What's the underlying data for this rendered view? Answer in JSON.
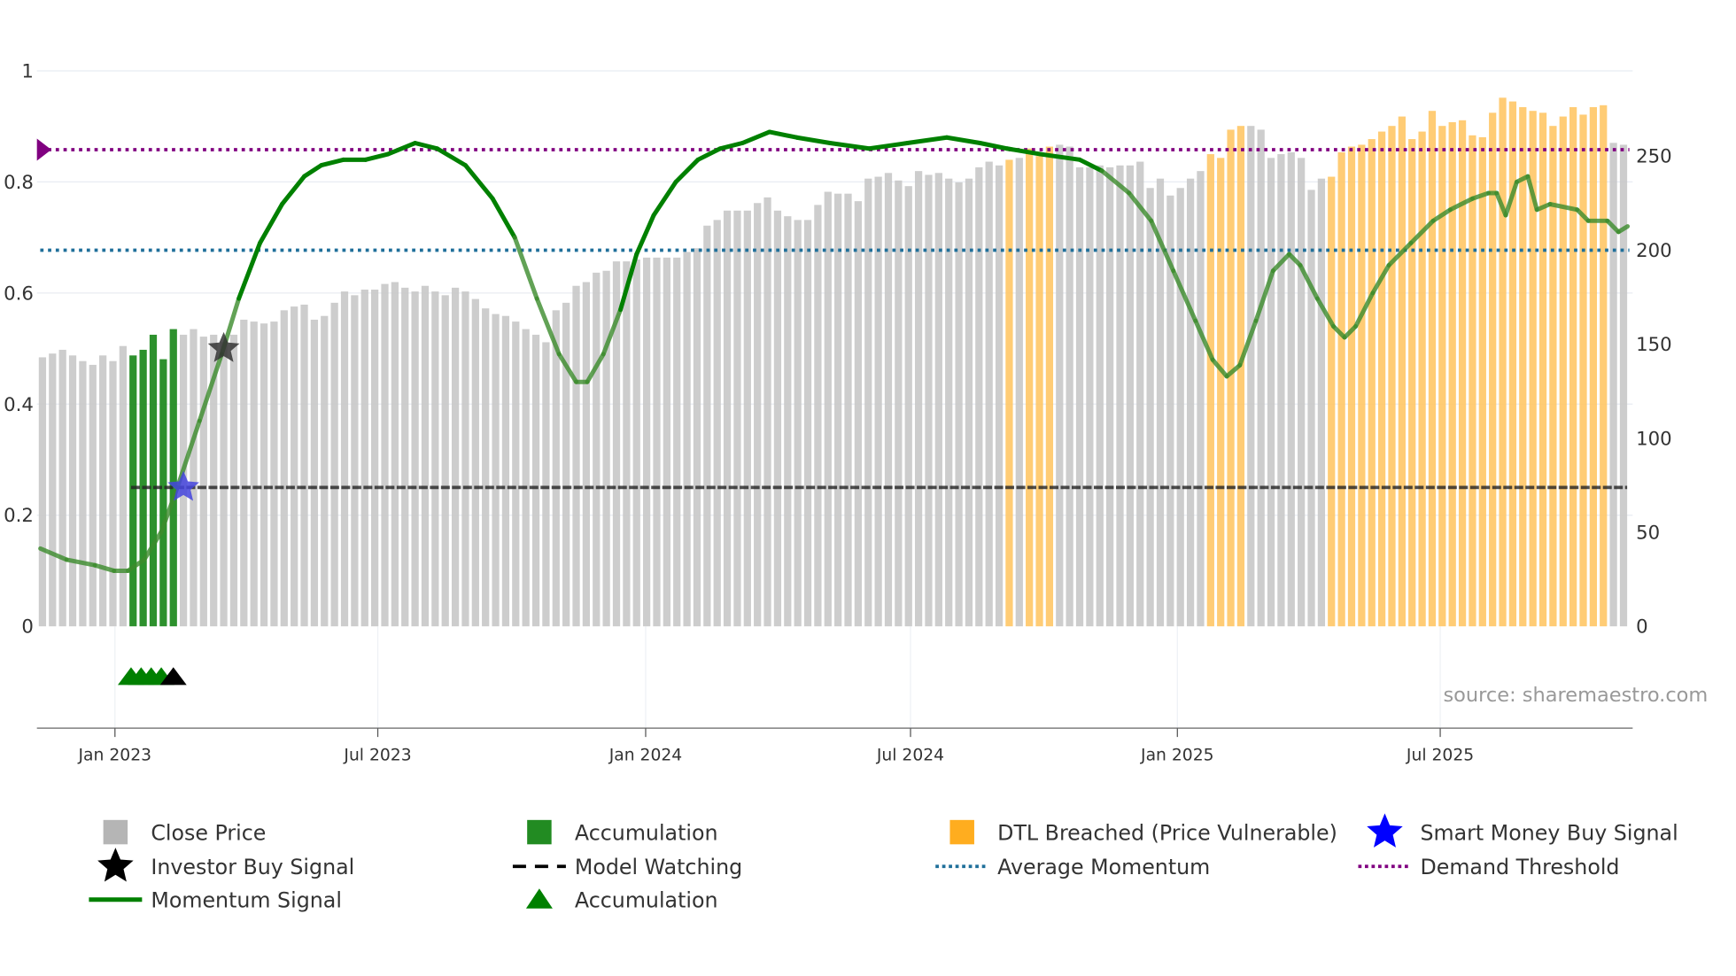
{
  "chart_data": {
    "type": "bar",
    "title": "",
    "source": "source: sharemaestro.com",
    "x_tick_labels": [
      "Jan 2023",
      "Jul 2023",
      "Jan 2024",
      "Jul 2024",
      "Jan 2025",
      "Jul 2025"
    ],
    "x_tick_week_index": [
      7.2,
      33.3,
      59.9,
      86.2,
      112.7,
      138.8
    ],
    "left_axis": {
      "range": [
        0,
        1
      ],
      "ticks": [
        0,
        0.2,
        0.4,
        0.6,
        0.8,
        1
      ],
      "tick_labels": [
        "0",
        "0.2",
        "0.4",
        "0.6",
        "0.8",
        "1"
      ]
    },
    "right_axis": {
      "range": [
        0,
        295
      ],
      "ticks": [
        0,
        50,
        100,
        150,
        200,
        250
      ],
      "tick_labels": [
        "0",
        "50",
        "100",
        "150",
        "200",
        "250"
      ]
    },
    "close_price": {
      "frequency": "weekly",
      "values": [
        143,
        145,
        147,
        144,
        141,
        139,
        144,
        141,
        149,
        144,
        147,
        155,
        142,
        158,
        155,
        158,
        154,
        155,
        151,
        155,
        163,
        162,
        161,
        162,
        168,
        170,
        171,
        163,
        165,
        172,
        178,
        176,
        179,
        179,
        182,
        183,
        180,
        178,
        181,
        178,
        176,
        180,
        178,
        174,
        169,
        166,
        165,
        162,
        158,
        155,
        151,
        168,
        172,
        181,
        183,
        188,
        189,
        194,
        194,
        195,
        196,
        196,
        196,
        196,
        199,
        201,
        213,
        216,
        221,
        221,
        221,
        225,
        228,
        221,
        218,
        216,
        216,
        224,
        231,
        230,
        230,
        226,
        238,
        239,
        241,
        237,
        234,
        242,
        240,
        241,
        238,
        236,
        238,
        244,
        247,
        245,
        248,
        249,
        254,
        250,
        255,
        256,
        255,
        244,
        244,
        245,
        244,
        245,
        245,
        247,
        233,
        238,
        229,
        233,
        238,
        242,
        251,
        249,
        264,
        266,
        266,
        264,
        249,
        251,
        252,
        249,
        232,
        238,
        239,
        252,
        255,
        256,
        259,
        263,
        266,
        271,
        259,
        263,
        274,
        266,
        268,
        269,
        261,
        260,
        273,
        281,
        279,
        276,
        274,
        273,
        266,
        271,
        276,
        272,
        276,
        277,
        257,
        256
      ],
      "status": "GGGGGGGGGAAAAAGGGGGGGGGGGGGGGGGGGGGGGGGGGGGGGGGGGGGGGGGGGGGGGGGGGGGGGGGGGGGGGGGGGGGGGGGGGGGGGGGGDGDDDGGGGGGGGGGGGGGGDDDDGGGGGGGGDDDDDDDDDDDDDDDDDDDDDDDDDDDD",
      "status_legend": {
        "G": "Close Price",
        "A": "Accumulation",
        "D": "DTL Breached (Price Vulnerable)"
      }
    },
    "momentum_signal": [
      [
        -0.2,
        0.14
      ],
      [
        2.4,
        0.12
      ],
      [
        5.2,
        0.11
      ],
      [
        7.1,
        0.1
      ],
      [
        8.5,
        0.1
      ],
      [
        10.1,
        0.12
      ],
      [
        11.8,
        0.17
      ],
      [
        13.4,
        0.25
      ],
      [
        15.6,
        0.37
      ],
      [
        17.8,
        0.49
      ],
      [
        19.5,
        0.59
      ],
      [
        21.6,
        0.69
      ],
      [
        23.8,
        0.76
      ],
      [
        26.0,
        0.81
      ],
      [
        27.7,
        0.83
      ],
      [
        29.9,
        0.84
      ],
      [
        32.1,
        0.84
      ],
      [
        34.3,
        0.85
      ],
      [
        37.0,
        0.87
      ],
      [
        39.2,
        0.86
      ],
      [
        42.0,
        0.83
      ],
      [
        44.7,
        0.77
      ],
      [
        46.9,
        0.7
      ],
      [
        49.1,
        0.59
      ],
      [
        51.3,
        0.49
      ],
      [
        53.0,
        0.44
      ],
      [
        54.1,
        0.44
      ],
      [
        55.7,
        0.49
      ],
      [
        57.4,
        0.57
      ],
      [
        59.0,
        0.67
      ],
      [
        60.7,
        0.74
      ],
      [
        62.9,
        0.8
      ],
      [
        65.1,
        0.84
      ],
      [
        67.3,
        0.86
      ],
      [
        69.5,
        0.87
      ],
      [
        72.2,
        0.89
      ],
      [
        74.9,
        0.88
      ],
      [
        78.2,
        0.87
      ],
      [
        82.1,
        0.86
      ],
      [
        85.9,
        0.87
      ],
      [
        89.8,
        0.88
      ],
      [
        93.1,
        0.87
      ],
      [
        95.8,
        0.86
      ],
      [
        99.1,
        0.85
      ],
      [
        103.0,
        0.84
      ],
      [
        105.2,
        0.82
      ],
      [
        107.9,
        0.78
      ],
      [
        110.1,
        0.73
      ],
      [
        112.3,
        0.64
      ],
      [
        114.5,
        0.55
      ],
      [
        116.2,
        0.48
      ],
      [
        117.6,
        0.45
      ],
      [
        118.9,
        0.47
      ],
      [
        120.5,
        0.55
      ],
      [
        122.2,
        0.64
      ],
      [
        123.8,
        0.67
      ],
      [
        124.9,
        0.65
      ],
      [
        126.6,
        0.59
      ],
      [
        128.2,
        0.54
      ],
      [
        129.3,
        0.52
      ],
      [
        130.4,
        0.54
      ],
      [
        132.1,
        0.6
      ],
      [
        133.7,
        0.65
      ],
      [
        135.9,
        0.69
      ],
      [
        138.1,
        0.73
      ],
      [
        139.8,
        0.75
      ],
      [
        142.0,
        0.77
      ],
      [
        143.6,
        0.78
      ],
      [
        144.4,
        0.78
      ],
      [
        145.3,
        0.74
      ],
      [
        146.4,
        0.8
      ],
      [
        147.5,
        0.81
      ],
      [
        148.4,
        0.75
      ],
      [
        149.7,
        0.76
      ],
      [
        152.4,
        0.75
      ],
      [
        153.5,
        0.73
      ],
      [
        155.4,
        0.73
      ],
      [
        156.5,
        0.71
      ],
      [
        157.4,
        0.72
      ]
    ],
    "average_momentum": 0.677,
    "demand_threshold": 0.858,
    "model_watching": {
      "level": 0.25,
      "from_week": 8.8
    },
    "smart_money_buy_signal": [
      {
        "week": 14,
        "value": 0.25
      }
    ],
    "investor_buy_signal": [
      {
        "week": 18,
        "value": 0.5
      }
    ],
    "accumulation_triangles": [
      {
        "week": 8.8,
        "color": "green"
      },
      {
        "week": 9.8,
        "color": "green"
      },
      {
        "week": 10.8,
        "color": "green"
      },
      {
        "week": 11.8,
        "color": "green"
      },
      {
        "week": 13,
        "color": "black"
      }
    ],
    "legend": [
      {
        "label": "Close Price",
        "icon": "grey-square"
      },
      {
        "label": "Accumulation",
        "icon": "green-square"
      },
      {
        "label": "DTL Breached (Price Vulnerable)",
        "icon": "orange-square"
      },
      {
        "label": "Smart Money Buy Signal",
        "icon": "blue-star"
      },
      {
        "label": "Investor Buy Signal",
        "icon": "black-star"
      },
      {
        "label": "Model Watching",
        "icon": "black-dash"
      },
      {
        "label": "Average Momentum",
        "icon": "blue-dot-line"
      },
      {
        "label": "Demand Threshold",
        "icon": "purple-dot-line"
      },
      {
        "label": "Momentum Signal",
        "icon": "green-line"
      },
      {
        "label": "Accumulation",
        "icon": "green-triangle"
      }
    ],
    "colors": {
      "close": "#c8c8c8",
      "accum": "#228b22",
      "dtl": "#ffc766",
      "momentum": "#008000",
      "avg": "#1f6f9a",
      "demand": "#800080",
      "smart": "#0000ff",
      "investor": "#000000"
    }
  }
}
